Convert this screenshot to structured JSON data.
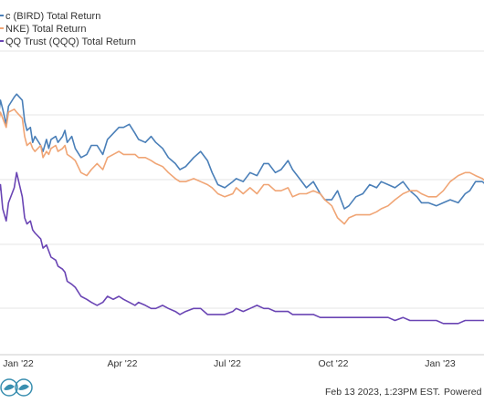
{
  "chart_data": {
    "type": "line",
    "legend": {
      "placement": "top-left",
      "entries": [
        "c (BIRD) Total Return",
        "NKE) Total Return",
        "QQ Trust (QQQ) Total Return"
      ]
    },
    "x_ticks": [
      "Jan '22",
      "Apr '22",
      "Jul '22",
      "Oct '22",
      "Jan '23"
    ],
    "grid": "horizontal",
    "series": [
      {
        "color": "#4a7fb8",
        "points": [
          [
            "2021-12-13",
            -12
          ],
          [
            "2021-12-15",
            -6
          ],
          [
            "2021-12-17",
            -9
          ],
          [
            "2021-12-20",
            -14
          ],
          [
            "2021-12-22",
            -8
          ],
          [
            "2021-12-27",
            -5
          ],
          [
            "2021-12-29",
            -4
          ],
          [
            "2022-01-03",
            -6
          ],
          [
            "2022-01-05",
            -13
          ],
          [
            "2022-01-07",
            -16
          ],
          [
            "2022-01-10",
            -15
          ],
          [
            "2022-01-12",
            -20
          ],
          [
            "2022-01-14",
            -18
          ],
          [
            "2022-01-19",
            -21
          ],
          [
            "2022-01-21",
            -23
          ],
          [
            "2022-01-24",
            -19
          ],
          [
            "2022-01-26",
            -22
          ],
          [
            "2022-01-28",
            -19
          ],
          [
            "2022-02-01",
            -18
          ],
          [
            "2022-02-03",
            -20
          ],
          [
            "2022-02-07",
            -18
          ],
          [
            "2022-02-09",
            -16
          ],
          [
            "2022-02-11",
            -20
          ],
          [
            "2022-02-15",
            -18
          ],
          [
            "2022-02-18",
            -22
          ],
          [
            "2022-02-23",
            -25
          ],
          [
            "2022-02-28",
            -24
          ],
          [
            "2022-03-04",
            -21
          ],
          [
            "2022-03-09",
            -21
          ],
          [
            "2022-03-14",
            -24
          ],
          [
            "2022-03-18",
            -19
          ],
          [
            "2022-03-23",
            -17
          ],
          [
            "2022-03-28",
            -15
          ],
          [
            "2022-04-01",
            -15
          ],
          [
            "2022-04-06",
            -14
          ],
          [
            "2022-04-11",
            -17
          ],
          [
            "2022-04-14",
            -19
          ],
          [
            "2022-04-20",
            -20
          ],
          [
            "2022-04-25",
            -18
          ],
          [
            "2022-04-29",
            -20
          ],
          [
            "2022-05-05",
            -22
          ],
          [
            "2022-05-10",
            -25
          ],
          [
            "2022-05-16",
            -27
          ],
          [
            "2022-05-20",
            -29
          ],
          [
            "2022-05-25",
            -28
          ],
          [
            "2022-06-01",
            -25
          ],
          [
            "2022-06-07",
            -23
          ],
          [
            "2022-06-13",
            -26
          ],
          [
            "2022-06-17",
            -30
          ],
          [
            "2022-06-22",
            -34
          ],
          [
            "2022-06-28",
            -35
          ],
          [
            "2022-07-05",
            -33
          ],
          [
            "2022-07-08",
            -32
          ],
          [
            "2022-07-14",
            -33
          ],
          [
            "2022-07-20",
            -30
          ],
          [
            "2022-07-26",
            -31
          ],
          [
            "2022-08-01",
            -27
          ],
          [
            "2022-08-05",
            -27
          ],
          [
            "2022-08-11",
            -30
          ],
          [
            "2022-08-16",
            -29
          ],
          [
            "2022-08-22",
            -26
          ],
          [
            "2022-08-26",
            -29
          ],
          [
            "2022-09-01",
            -32
          ],
          [
            "2022-09-07",
            -35
          ],
          [
            "2022-09-13",
            -33
          ],
          [
            "2022-09-19",
            -37
          ],
          [
            "2022-09-23",
            -39
          ],
          [
            "2022-09-29",
            -39
          ],
          [
            "2022-10-04",
            -36
          ],
          [
            "2022-10-10",
            -42
          ],
          [
            "2022-10-14",
            -41
          ],
          [
            "2022-10-20",
            -38
          ],
          [
            "2022-10-26",
            -37
          ],
          [
            "2022-11-01",
            -34
          ],
          [
            "2022-11-07",
            -35
          ],
          [
            "2022-11-11",
            -33
          ],
          [
            "2022-11-17",
            -34
          ],
          [
            "2022-11-23",
            -35
          ],
          [
            "2022-11-30",
            -33
          ],
          [
            "2022-12-06",
            -36
          ],
          [
            "2022-12-12",
            -38
          ],
          [
            "2022-12-16",
            -40
          ],
          [
            "2022-12-22",
            -40
          ],
          [
            "2022-12-29",
            -41
          ],
          [
            "2023-01-04",
            -40
          ],
          [
            "2023-01-10",
            -39
          ],
          [
            "2023-01-17",
            -40
          ],
          [
            "2023-01-23",
            -37
          ],
          [
            "2023-01-27",
            -36
          ],
          [
            "2023-02-01",
            -33
          ],
          [
            "2023-02-07",
            -33
          ],
          [
            "2023-02-10",
            -34
          ]
        ]
      },
      {
        "color": "#f0a575",
        "points": [
          [
            "2021-12-13",
            -14
          ],
          [
            "2021-12-15",
            -10
          ],
          [
            "2021-12-17",
            -12
          ],
          [
            "2021-12-20",
            -15
          ],
          [
            "2021-12-22",
            -10
          ],
          [
            "2021-12-27",
            -9
          ],
          [
            "2021-12-29",
            -10
          ],
          [
            "2022-01-03",
            -12
          ],
          [
            "2022-01-05",
            -18
          ],
          [
            "2022-01-07",
            -21
          ],
          [
            "2022-01-10",
            -20
          ],
          [
            "2022-01-12",
            -22
          ],
          [
            "2022-01-14",
            -23
          ],
          [
            "2022-01-19",
            -21
          ],
          [
            "2022-01-21",
            -25
          ],
          [
            "2022-01-24",
            -23
          ],
          [
            "2022-01-26",
            -24
          ],
          [
            "2022-01-28",
            -22
          ],
          [
            "2022-02-01",
            -21
          ],
          [
            "2022-02-03",
            -23
          ],
          [
            "2022-02-07",
            -22
          ],
          [
            "2022-02-09",
            -21
          ],
          [
            "2022-02-11",
            -24
          ],
          [
            "2022-02-15",
            -25
          ],
          [
            "2022-02-18",
            -26
          ],
          [
            "2022-02-23",
            -30
          ],
          [
            "2022-02-28",
            -31
          ],
          [
            "2022-03-04",
            -29
          ],
          [
            "2022-03-09",
            -27
          ],
          [
            "2022-03-14",
            -29
          ],
          [
            "2022-03-18",
            -25
          ],
          [
            "2022-03-23",
            -24
          ],
          [
            "2022-03-28",
            -23
          ],
          [
            "2022-04-01",
            -24
          ],
          [
            "2022-04-06",
            -24
          ],
          [
            "2022-04-11",
            -24
          ],
          [
            "2022-04-14",
            -25
          ],
          [
            "2022-04-20",
            -25
          ],
          [
            "2022-04-25",
            -26
          ],
          [
            "2022-04-29",
            -27
          ],
          [
            "2022-05-05",
            -28
          ],
          [
            "2022-05-10",
            -30
          ],
          [
            "2022-05-16",
            -32
          ],
          [
            "2022-05-20",
            -33
          ],
          [
            "2022-05-25",
            -33
          ],
          [
            "2022-06-01",
            -32
          ],
          [
            "2022-06-07",
            -33
          ],
          [
            "2022-06-13",
            -34
          ],
          [
            "2022-06-17",
            -35
          ],
          [
            "2022-06-22",
            -37
          ],
          [
            "2022-06-28",
            -38
          ],
          [
            "2022-07-05",
            -37
          ],
          [
            "2022-07-08",
            -35
          ],
          [
            "2022-07-14",
            -37
          ],
          [
            "2022-07-20",
            -35
          ],
          [
            "2022-07-26",
            -37
          ],
          [
            "2022-08-01",
            -34
          ],
          [
            "2022-08-05",
            -34
          ],
          [
            "2022-08-11",
            -36
          ],
          [
            "2022-08-16",
            -36
          ],
          [
            "2022-08-22",
            -35
          ],
          [
            "2022-08-26",
            -38
          ],
          [
            "2022-09-01",
            -37
          ],
          [
            "2022-09-07",
            -37
          ],
          [
            "2022-09-13",
            -36
          ],
          [
            "2022-09-19",
            -37
          ],
          [
            "2022-09-23",
            -39
          ],
          [
            "2022-09-29",
            -41
          ],
          [
            "2022-10-04",
            -45
          ],
          [
            "2022-10-10",
            -47
          ],
          [
            "2022-10-14",
            -45
          ],
          [
            "2022-10-20",
            -44
          ],
          [
            "2022-10-26",
            -44
          ],
          [
            "2022-11-01",
            -44
          ],
          [
            "2022-11-07",
            -43
          ],
          [
            "2022-11-11",
            -42
          ],
          [
            "2022-11-17",
            -41
          ],
          [
            "2022-11-23",
            -39
          ],
          [
            "2022-11-30",
            -37
          ],
          [
            "2022-12-06",
            -36
          ],
          [
            "2022-12-12",
            -36
          ],
          [
            "2022-12-16",
            -37
          ],
          [
            "2022-12-22",
            -38
          ],
          [
            "2022-12-29",
            -38
          ],
          [
            "2023-01-04",
            -36
          ],
          [
            "2023-01-10",
            -33
          ],
          [
            "2023-01-17",
            -31
          ],
          [
            "2023-01-23",
            -30
          ],
          [
            "2023-01-27",
            -30
          ],
          [
            "2023-02-01",
            -31
          ],
          [
            "2023-02-07",
            -32
          ],
          [
            "2023-02-10",
            -33
          ]
        ]
      },
      {
        "color": "#6a45b4",
        "points": [
          [
            "2021-12-13",
            -38
          ],
          [
            "2021-12-15",
            -34
          ],
          [
            "2021-12-17",
            -42
          ],
          [
            "2021-12-20",
            -46
          ],
          [
            "2021-12-22",
            -40
          ],
          [
            "2021-12-27",
            -35
          ],
          [
            "2021-12-29",
            -30
          ],
          [
            "2022-01-03",
            -38
          ],
          [
            "2022-01-05",
            -45
          ],
          [
            "2022-01-07",
            -47
          ],
          [
            "2022-01-10",
            -46
          ],
          [
            "2022-01-12",
            -49
          ],
          [
            "2022-01-14",
            -50
          ],
          [
            "2022-01-19",
            -52
          ],
          [
            "2022-01-21",
            -55
          ],
          [
            "2022-01-24",
            -54
          ],
          [
            "2022-01-26",
            -56
          ],
          [
            "2022-01-28",
            -58
          ],
          [
            "2022-02-01",
            -59
          ],
          [
            "2022-02-03",
            -61
          ],
          [
            "2022-02-07",
            -62
          ],
          [
            "2022-02-09",
            -63
          ],
          [
            "2022-02-11",
            -66
          ],
          [
            "2022-02-15",
            -67
          ],
          [
            "2022-02-18",
            -68
          ],
          [
            "2022-02-23",
            -71
          ],
          [
            "2022-02-28",
            -72
          ],
          [
            "2022-03-04",
            -73
          ],
          [
            "2022-03-09",
            -74
          ],
          [
            "2022-03-14",
            -73
          ],
          [
            "2022-03-18",
            -71
          ],
          [
            "2022-03-23",
            -72
          ],
          [
            "2022-03-28",
            -71
          ],
          [
            "2022-04-01",
            -72
          ],
          [
            "2022-04-06",
            -73
          ],
          [
            "2022-04-11",
            -74
          ],
          [
            "2022-04-14",
            -73
          ],
          [
            "2022-04-20",
            -74
          ],
          [
            "2022-04-25",
            -75
          ],
          [
            "2022-04-29",
            -75
          ],
          [
            "2022-05-05",
            -74
          ],
          [
            "2022-05-10",
            -75
          ],
          [
            "2022-05-16",
            -76
          ],
          [
            "2022-05-20",
            -77
          ],
          [
            "2022-05-25",
            -76
          ],
          [
            "2022-06-01",
            -75
          ],
          [
            "2022-06-07",
            -75
          ],
          [
            "2022-06-13",
            -77
          ],
          [
            "2022-06-17",
            -77
          ],
          [
            "2022-06-22",
            -77
          ],
          [
            "2022-06-28",
            -77
          ],
          [
            "2022-07-05",
            -76
          ],
          [
            "2022-07-08",
            -75
          ],
          [
            "2022-07-14",
            -76
          ],
          [
            "2022-07-20",
            -75
          ],
          [
            "2022-07-26",
            -74
          ],
          [
            "2022-08-01",
            -75
          ],
          [
            "2022-08-05",
            -75
          ],
          [
            "2022-08-11",
            -76
          ],
          [
            "2022-08-16",
            -76
          ],
          [
            "2022-08-22",
            -76
          ],
          [
            "2022-08-26",
            -77
          ],
          [
            "2022-09-01",
            -77
          ],
          [
            "2022-09-07",
            -77
          ],
          [
            "2022-09-13",
            -77
          ],
          [
            "2022-09-19",
            -78
          ],
          [
            "2022-09-23",
            -78
          ],
          [
            "2022-09-29",
            -78
          ],
          [
            "2022-10-04",
            -78
          ],
          [
            "2022-10-10",
            -78
          ],
          [
            "2022-10-14",
            -78
          ],
          [
            "2022-10-20",
            -78
          ],
          [
            "2022-10-26",
            -78
          ],
          [
            "2022-11-01",
            -78
          ],
          [
            "2022-11-07",
            -78
          ],
          [
            "2022-11-11",
            -78
          ],
          [
            "2022-11-17",
            -78
          ],
          [
            "2022-11-23",
            -79
          ],
          [
            "2022-11-30",
            -78
          ],
          [
            "2022-12-06",
            -79
          ],
          [
            "2022-12-12",
            -79
          ],
          [
            "2022-12-16",
            -79
          ],
          [
            "2022-12-22",
            -79
          ],
          [
            "2022-12-29",
            -79
          ],
          [
            "2023-01-04",
            -80
          ],
          [
            "2023-01-10",
            -80
          ],
          [
            "2023-01-17",
            -80
          ],
          [
            "2023-01-23",
            -79
          ],
          [
            "2023-01-27",
            -79
          ],
          [
            "2023-02-01",
            -79
          ],
          [
            "2023-02-07",
            -79
          ],
          [
            "2023-02-10",
            -79
          ]
        ]
      }
    ]
  },
  "footer": {
    "timestamp": "Feb 13 2023, 1:23PM EST.",
    "powered": "Powered by"
  }
}
